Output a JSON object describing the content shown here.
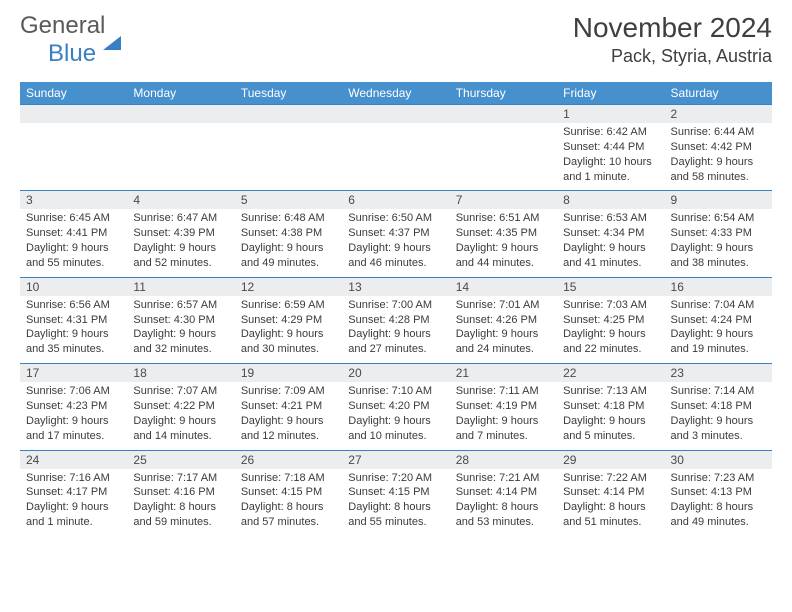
{
  "logo": {
    "general": "General",
    "blue": "Blue"
  },
  "title": "November 2024",
  "location": "Pack, Styria, Austria",
  "colors": {
    "header_bg": "#4690ce",
    "header_fg": "#ffffff",
    "rule": "#3a7fc4",
    "daynum_bg": "#ecedef",
    "text": "#3b3b3b",
    "title_color": "#3f3f3f"
  },
  "daysOfWeek": [
    "Sunday",
    "Monday",
    "Tuesday",
    "Wednesday",
    "Thursday",
    "Friday",
    "Saturday"
  ],
  "weeks": [
    [
      null,
      null,
      null,
      null,
      null,
      {
        "n": "1",
        "sunrise": "6:42 AM",
        "sunset": "4:44 PM",
        "daylight": "10 hours and 1 minute."
      },
      {
        "n": "2",
        "sunrise": "6:44 AM",
        "sunset": "4:42 PM",
        "daylight": "9 hours and 58 minutes."
      }
    ],
    [
      {
        "n": "3",
        "sunrise": "6:45 AM",
        "sunset": "4:41 PM",
        "daylight": "9 hours and 55 minutes."
      },
      {
        "n": "4",
        "sunrise": "6:47 AM",
        "sunset": "4:39 PM",
        "daylight": "9 hours and 52 minutes."
      },
      {
        "n": "5",
        "sunrise": "6:48 AM",
        "sunset": "4:38 PM",
        "daylight": "9 hours and 49 minutes."
      },
      {
        "n": "6",
        "sunrise": "6:50 AM",
        "sunset": "4:37 PM",
        "daylight": "9 hours and 46 minutes."
      },
      {
        "n": "7",
        "sunrise": "6:51 AM",
        "sunset": "4:35 PM",
        "daylight": "9 hours and 44 minutes."
      },
      {
        "n": "8",
        "sunrise": "6:53 AM",
        "sunset": "4:34 PM",
        "daylight": "9 hours and 41 minutes."
      },
      {
        "n": "9",
        "sunrise": "6:54 AM",
        "sunset": "4:33 PM",
        "daylight": "9 hours and 38 minutes."
      }
    ],
    [
      {
        "n": "10",
        "sunrise": "6:56 AM",
        "sunset": "4:31 PM",
        "daylight": "9 hours and 35 minutes."
      },
      {
        "n": "11",
        "sunrise": "6:57 AM",
        "sunset": "4:30 PM",
        "daylight": "9 hours and 32 minutes."
      },
      {
        "n": "12",
        "sunrise": "6:59 AM",
        "sunset": "4:29 PM",
        "daylight": "9 hours and 30 minutes."
      },
      {
        "n": "13",
        "sunrise": "7:00 AM",
        "sunset": "4:28 PM",
        "daylight": "9 hours and 27 minutes."
      },
      {
        "n": "14",
        "sunrise": "7:01 AM",
        "sunset": "4:26 PM",
        "daylight": "9 hours and 24 minutes."
      },
      {
        "n": "15",
        "sunrise": "7:03 AM",
        "sunset": "4:25 PM",
        "daylight": "9 hours and 22 minutes."
      },
      {
        "n": "16",
        "sunrise": "7:04 AM",
        "sunset": "4:24 PM",
        "daylight": "9 hours and 19 minutes."
      }
    ],
    [
      {
        "n": "17",
        "sunrise": "7:06 AM",
        "sunset": "4:23 PM",
        "daylight": "9 hours and 17 minutes."
      },
      {
        "n": "18",
        "sunrise": "7:07 AM",
        "sunset": "4:22 PM",
        "daylight": "9 hours and 14 minutes."
      },
      {
        "n": "19",
        "sunrise": "7:09 AM",
        "sunset": "4:21 PM",
        "daylight": "9 hours and 12 minutes."
      },
      {
        "n": "20",
        "sunrise": "7:10 AM",
        "sunset": "4:20 PM",
        "daylight": "9 hours and 10 minutes."
      },
      {
        "n": "21",
        "sunrise": "7:11 AM",
        "sunset": "4:19 PM",
        "daylight": "9 hours and 7 minutes."
      },
      {
        "n": "22",
        "sunrise": "7:13 AM",
        "sunset": "4:18 PM",
        "daylight": "9 hours and 5 minutes."
      },
      {
        "n": "23",
        "sunrise": "7:14 AM",
        "sunset": "4:18 PM",
        "daylight": "9 hours and 3 minutes."
      }
    ],
    [
      {
        "n": "24",
        "sunrise": "7:16 AM",
        "sunset": "4:17 PM",
        "daylight": "9 hours and 1 minute."
      },
      {
        "n": "25",
        "sunrise": "7:17 AM",
        "sunset": "4:16 PM",
        "daylight": "8 hours and 59 minutes."
      },
      {
        "n": "26",
        "sunrise": "7:18 AM",
        "sunset": "4:15 PM",
        "daylight": "8 hours and 57 minutes."
      },
      {
        "n": "27",
        "sunrise": "7:20 AM",
        "sunset": "4:15 PM",
        "daylight": "8 hours and 55 minutes."
      },
      {
        "n": "28",
        "sunrise": "7:21 AM",
        "sunset": "4:14 PM",
        "daylight": "8 hours and 53 minutes."
      },
      {
        "n": "29",
        "sunrise": "7:22 AM",
        "sunset": "4:14 PM",
        "daylight": "8 hours and 51 minutes."
      },
      {
        "n": "30",
        "sunrise": "7:23 AM",
        "sunset": "4:13 PM",
        "daylight": "8 hours and 49 minutes."
      }
    ]
  ],
  "labels": {
    "sunrise": "Sunrise: ",
    "sunset": "Sunset: ",
    "daylight": "Daylight: "
  }
}
